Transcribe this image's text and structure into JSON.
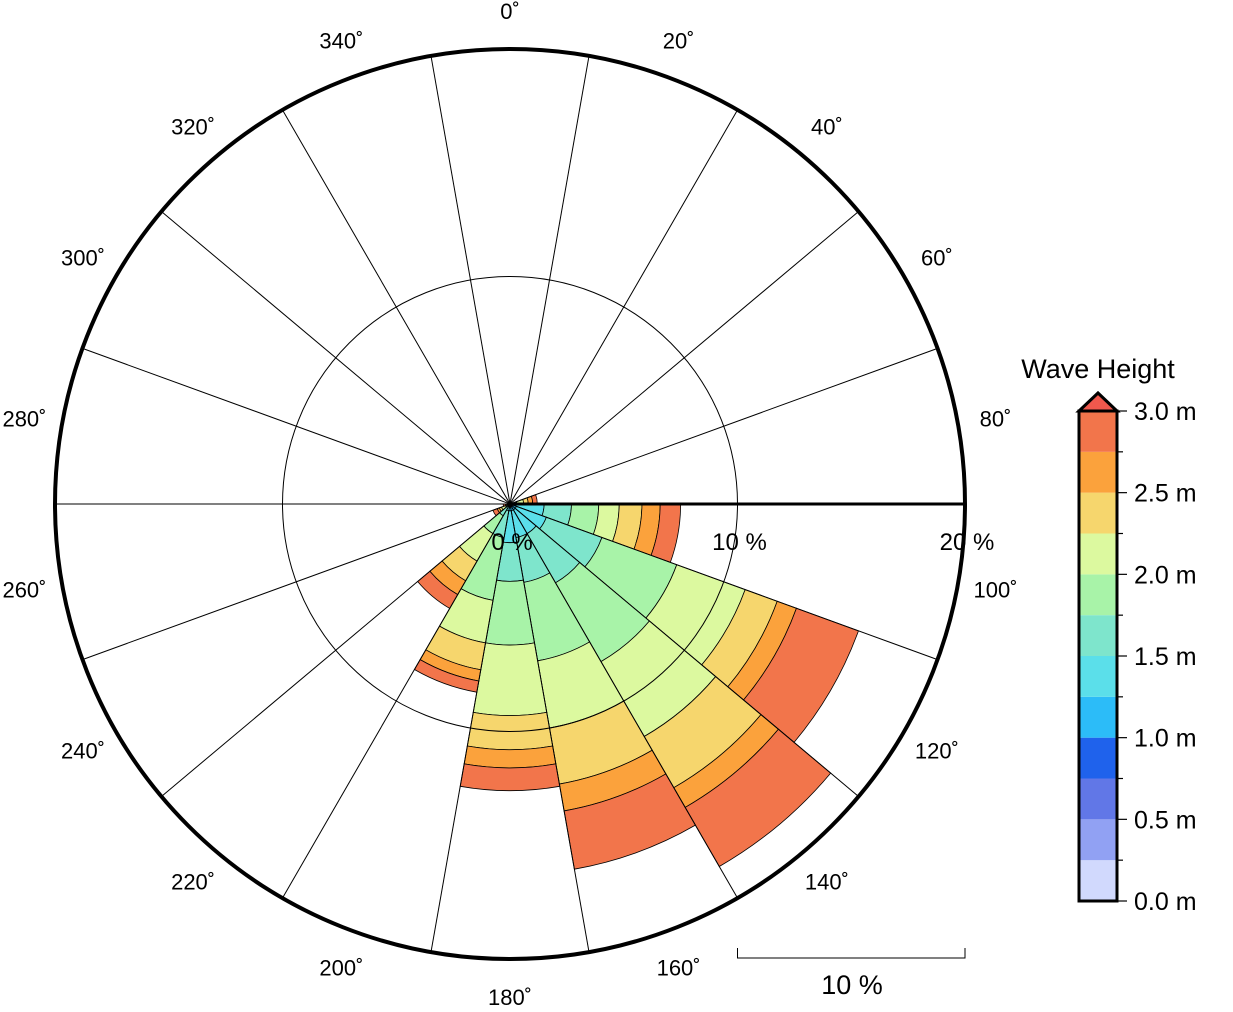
{
  "chart_data": {
    "type": "wind-rose",
    "title": "",
    "angle_labels": [
      "0˚",
      "20˚",
      "40˚",
      "60˚",
      "80˚",
      "100˚",
      "120˚",
      "140˚",
      "160˚",
      "180˚",
      "200˚",
      "220˚",
      "240˚",
      "260˚",
      "280˚",
      "300˚",
      "320˚",
      "340˚"
    ],
    "radial_labels": [
      "0 %",
      "10 %",
      "20 %"
    ],
    "radial_ticks": [
      0,
      10,
      20
    ],
    "rmax_percent": 20,
    "sector_width_deg": 20,
    "scale_bar_label": "10 %",
    "legend": {
      "title": "Wave Height",
      "tick_labels": [
        "0.0 m",
        "0.5 m",
        "1.0 m",
        "1.5 m",
        "2.0 m",
        "2.5 m",
        "3.0 m"
      ],
      "bin_edges_m": [
        0.0,
        0.25,
        0.5,
        0.75,
        1.0,
        1.25,
        1.5,
        1.75,
        2.0,
        2.25,
        2.5,
        2.75,
        3.0
      ],
      "colors": [
        "#d1d9fd",
        "#91a1f3",
        "#6177e7",
        "#1f62ec",
        "#2cbcf8",
        "#5bdfea",
        "#7ee5cc",
        "#a8f3a8",
        "#dcf99f",
        "#f6d66d",
        "#fba23c",
        "#f2754b"
      ],
      "over_color": "#f0584d"
    },
    "sectors": [
      {
        "direction_deg": 80,
        "cumulative_percent": [
          0,
          0,
          0,
          0,
          0,
          0,
          0.05,
          0.3,
          0.6,
          0.8,
          1.0,
          1.2
        ]
      },
      {
        "direction_deg": 100,
        "cumulative_percent": [
          0,
          0,
          0,
          0,
          0,
          1.5,
          2.7,
          3.9,
          4.8,
          5.8,
          6.6,
          7.5
        ]
      },
      {
        "direction_deg": 120,
        "cumulative_percent": [
          0,
          0,
          0,
          0,
          0.3,
          1.7,
          4.3,
          7.8,
          11.0,
          12.5,
          13.4,
          16.3
        ]
      },
      {
        "direction_deg": 140,
        "cumulative_percent": [
          0,
          0,
          0,
          0,
          0.3,
          1.5,
          4.0,
          8.0,
          11.8,
          14.4,
          15.4,
          18.4
        ]
      },
      {
        "direction_deg": 160,
        "cumulative_percent": [
          0,
          0,
          0,
          0,
          0.3,
          1.5,
          3.5,
          7.0,
          10.0,
          12.5,
          13.7,
          16.3
        ]
      },
      {
        "direction_deg": 180,
        "cumulative_percent": [
          0,
          0,
          0,
          0,
          0.3,
          1.7,
          3.4,
          6.2,
          9.3,
          10.8,
          11.6,
          12.6
        ]
      },
      {
        "direction_deg": 200,
        "cumulative_percent": [
          0,
          0,
          0,
          0,
          0,
          0.3,
          1.5,
          4.3,
          6.2,
          7.4,
          7.9,
          8.4
        ]
      },
      {
        "direction_deg": 220,
        "cumulative_percent": [
          0,
          0,
          0,
          0,
          0,
          0,
          0.6,
          1.5,
          2.9,
          3.9,
          4.6,
          5.3
        ]
      },
      {
        "direction_deg": 240,
        "cumulative_percent": [
          0,
          0,
          0,
          0,
          0,
          0,
          0,
          0.2,
          0.4,
          0.5,
          0.6,
          0.8
        ]
      },
      {
        "direction_deg": 260,
        "cumulative_percent": [
          0,
          0,
          0,
          0,
          0,
          0,
          0,
          0,
          0.1,
          0.15,
          0.2,
          0.3
        ]
      }
    ]
  }
}
